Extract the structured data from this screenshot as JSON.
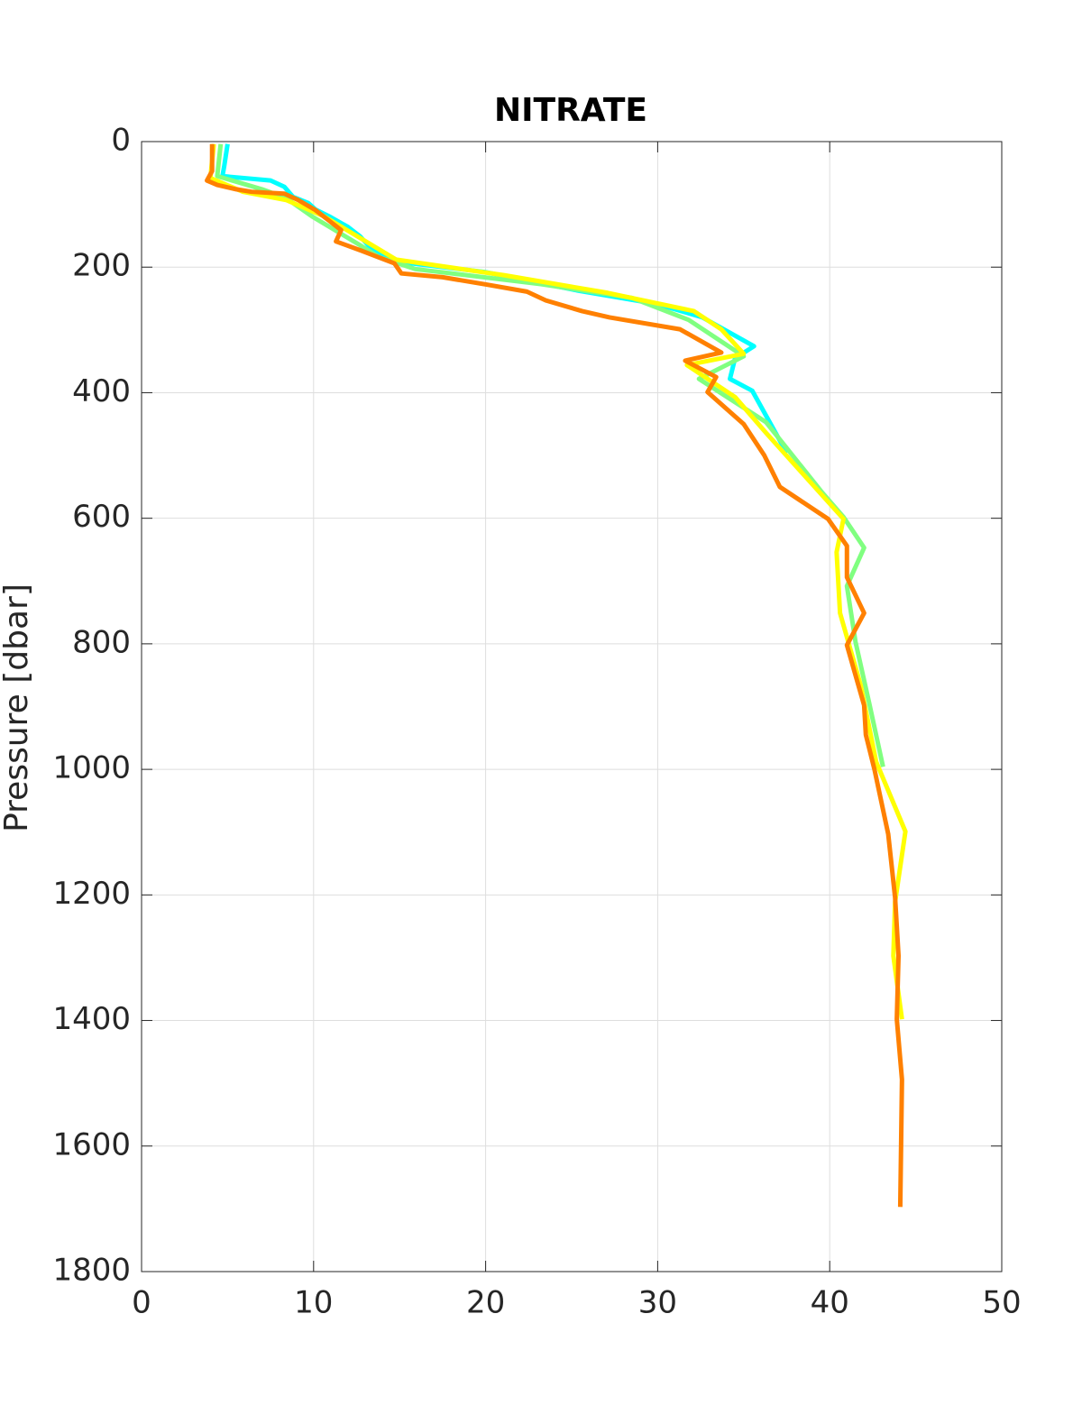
{
  "chart_data": {
    "type": "line",
    "title": "NITRATE",
    "y_label": "Pressure [dbar]",
    "xlim": [
      0,
      50
    ],
    "xticks": [
      0,
      10,
      20,
      30,
      40,
      50
    ],
    "ylim": [
      0,
      1800
    ],
    "yticks": [
      0,
      200,
      400,
      600,
      800,
      1000,
      1200,
      1400,
      1600,
      1800
    ],
    "y_reversed": true,
    "grid": true,
    "series": [
      {
        "color": "#00ffff",
        "x": [
          5.0,
          4.8,
          4.7,
          7.5,
          8.3,
          8.8,
          9.7,
          10.1,
          10.9,
          12.0,
          12.7,
          13.4,
          14.8,
          20.0,
          25.3,
          30.0,
          32.6,
          34.3,
          35.6,
          34.5,
          34.2,
          35.5,
          37.5
        ],
        "y": [
          4,
          40,
          55,
          62,
          72,
          88,
          98,
          108,
          119,
          136,
          151,
          172,
          191,
          208,
          237,
          259,
          280,
          306,
          326,
          345,
          378,
          397,
          496
        ]
      },
      {
        "color": "#80ff80",
        "x": [
          4.6,
          4.4,
          7.0,
          8.4,
          9.9,
          12.7,
          13.8,
          15.9,
          23.2,
          28.5,
          31.8,
          35.0,
          32.4,
          36.3,
          39.5,
          40.8,
          42.0,
          41.0,
          41.5,
          42.3,
          43.1
        ],
        "y": [
          4,
          55,
          76,
          90,
          119,
          165,
          184,
          203,
          227,
          249,
          284,
          342,
          378,
          447,
          557,
          598,
          647,
          708,
          797,
          895,
          996
        ]
      },
      {
        "color": "#ffff00",
        "x": [
          4.2,
          4.0,
          5.9,
          8.4,
          10.6,
          14.8,
          21.1,
          27.1,
          32.1,
          33.7,
          35.0,
          31.7,
          34.5,
          36.3,
          40.8,
          40.4,
          40.6,
          41.8,
          42.7,
          44.4,
          43.8,
          43.7,
          44.2
        ],
        "y": [
          4,
          58,
          80,
          93,
          119,
          188,
          213,
          241,
          270,
          299,
          338,
          356,
          407,
          464,
          601,
          654,
          751,
          866,
          988,
          1099,
          1211,
          1297,
          1398
        ]
      },
      {
        "color": "#ff8000",
        "x": [
          4.1,
          4.1,
          3.8,
          4.4,
          5.5,
          6.4,
          8.3,
          9.1,
          10.1,
          10.9,
          11.6,
          11.3,
          12.8,
          14.7,
          15.1,
          17.5,
          20.1,
          22.4,
          23.5,
          25.6,
          27.2,
          31.3,
          32.4,
          33.7,
          31.6,
          33.4,
          32.9,
          35.0,
          36.2,
          37.1,
          39.9,
          41.0,
          41.0,
          42.0,
          41.0,
          42.0,
          42.1,
          42.6,
          43.4,
          43.8,
          44.0,
          43.9,
          44.2,
          44.1
        ],
        "y": [
          4,
          47,
          62,
          69,
          76,
          80,
          83,
          93,
          109,
          126,
          141,
          159,
          174,
          194,
          210,
          216,
          228,
          239,
          253,
          270,
          280,
          299,
          316,
          336,
          349,
          375,
          399,
          450,
          500,
          550,
          601,
          644,
          694,
          751,
          802,
          898,
          945,
          1000,
          1103,
          1204,
          1297,
          1398,
          1494,
          1697
        ]
      }
    ]
  }
}
